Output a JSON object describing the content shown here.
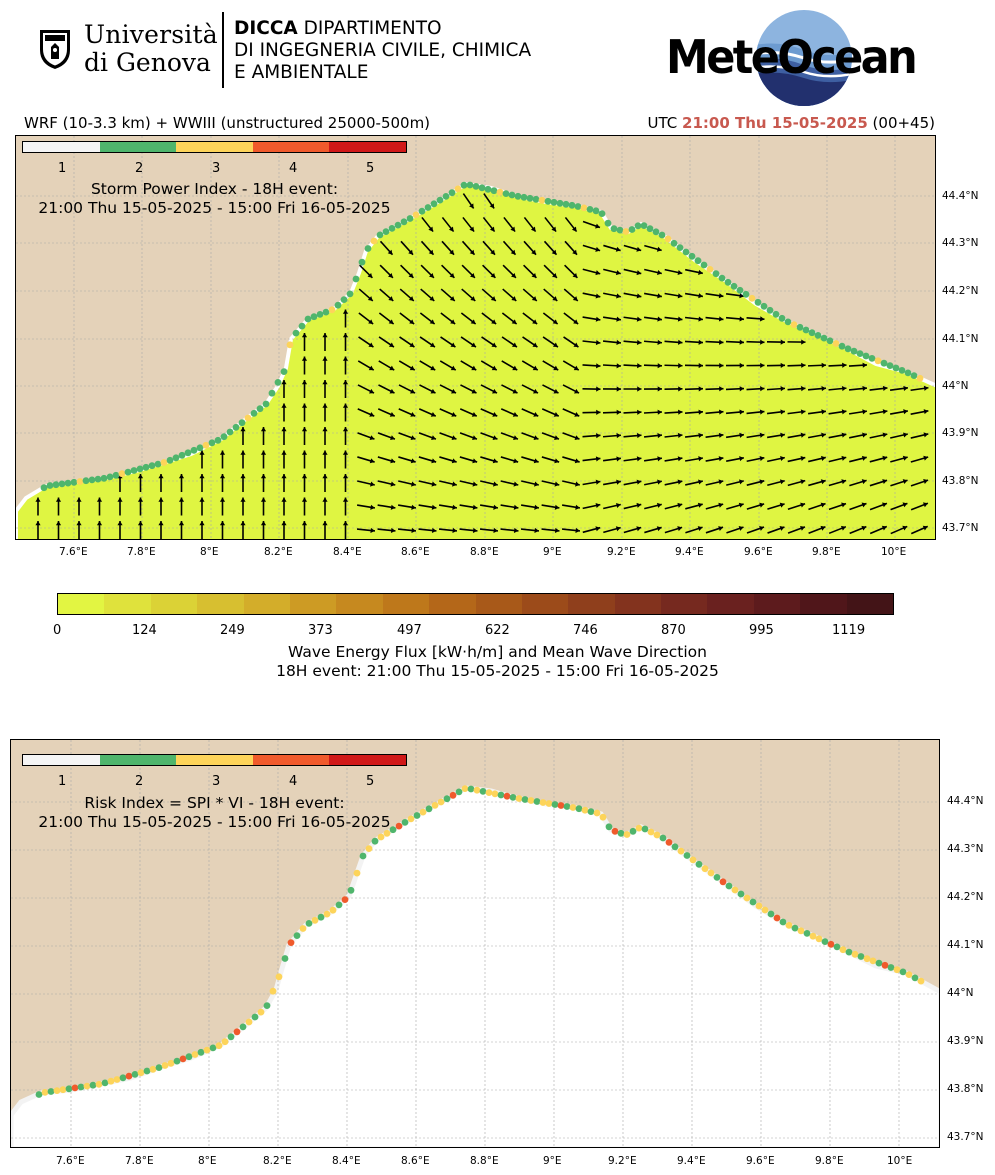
{
  "header": {
    "university_line1": "Università",
    "university_line2": "di Genova",
    "dept_abbr": "DICCA",
    "dept_line1_rest": "DIPARTIMENTO",
    "dept_line2": "DI INGEGNERIA CIVILE, CHIMICA",
    "dept_line3": "E AMBIENTALE",
    "meteo_brand": "MeteOcean",
    "model_label": "WRF (10-3.3 km) + WWIII (unstructured 25000-500m)",
    "utc_prefix": "UTC",
    "utc_time": "21:00 Thu 15-05-2025",
    "utc_offset": "(00+45)",
    "accent_color": "#c8594f"
  },
  "map1": {
    "title_line1": "Storm Power Index - 18H event:",
    "title_line2": "21:00 Thu 15-05-2025 - 15:00 Fri 16-05-2025",
    "x_ticks": [
      "7.6°E",
      "7.8°E",
      "8°E",
      "8.2°E",
      "8.4°E",
      "8.6°E",
      "8.8°E",
      "9°E",
      "9.2°E",
      "9.4°E",
      "9.6°E",
      "9.8°E",
      "10°E"
    ],
    "y_ticks": [
      "44.4°N",
      "44.3°N",
      "44.2°N",
      "44.1°N",
      "44°N",
      "43.9°N",
      "43.8°N",
      "43.7°N"
    ]
  },
  "map2": {
    "title_line1": "Risk Index = SPI * VI - 18H event:",
    "title_line2": "21:00 Thu 15-05-2025 - 15:00 Fri 16-05-2025",
    "x_ticks": [
      "7.6°E",
      "7.8°E",
      "8°E",
      "8.2°E",
      "8.4°E",
      "8.6°E",
      "8.8°E",
      "9°E",
      "9.2°E",
      "9.4°E",
      "9.6°E",
      "9.8°E",
      "10°E"
    ],
    "y_ticks": [
      "44.4°N",
      "44.3°N",
      "44.2°N",
      "44.1°N",
      "44°N",
      "43.9°N",
      "43.8°N",
      "43.7°N"
    ]
  },
  "category_legend": {
    "labels": [
      "1",
      "2",
      "3",
      "4",
      "5"
    ],
    "colors": [
      "#f5f5f5",
      "#4fb56c",
      "#fdd45a",
      "#f05a2c",
      "#d01818"
    ]
  },
  "energy_colorbar": {
    "ticks": [
      "0",
      "124",
      "249",
      "373",
      "497",
      "622",
      "746",
      "870",
      "995",
      "1119"
    ],
    "colors": [
      "#e2f542",
      "#dfe23c",
      "#dbd236",
      "#d7bf30",
      "#d3ad2a",
      "#cd9b24",
      "#c6891f",
      "#be781b",
      "#b46719",
      "#a85919",
      "#9c4b1a",
      "#8f3f1c",
      "#83331e",
      "#76291f",
      "#6a211f",
      "#5d1b1d",
      "#50161a",
      "#431417"
    ],
    "title_line1": "Wave Energy Flux [kW·h/m] and Mean Wave Direction",
    "title_line2": "18H event: 21:00 Thu 15-05-2025 - 15:00 Fri 16-05-2025"
  }
}
